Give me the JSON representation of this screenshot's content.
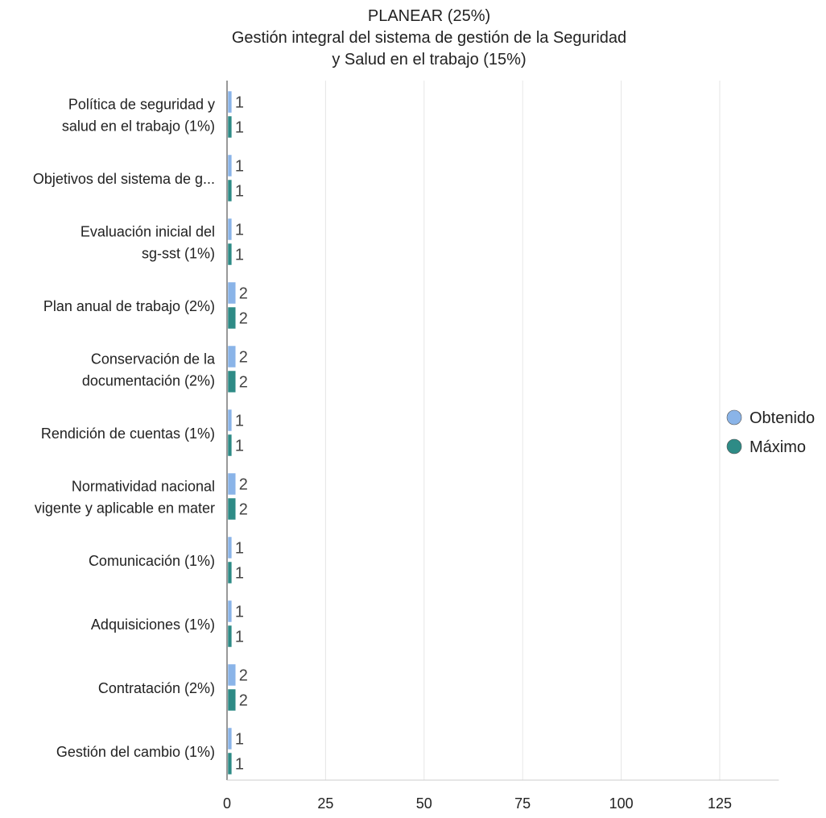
{
  "chart_data": {
    "type": "bar",
    "orientation": "horizontal",
    "title_lines": [
      "PLANEAR (25%)",
      "Gestión integral del sistema de gestión de la Seguridad",
      "y Salud en el trabajo (15%)"
    ],
    "xlim": [
      0,
      140
    ],
    "x_ticks": [
      0,
      25,
      50,
      75,
      100,
      125
    ],
    "grid": true,
    "legend_position": "right",
    "categories": [
      [
        "Política de seguridad y",
        "salud en el trabajo (1%)"
      ],
      [
        "Objetivos del sistema de g..."
      ],
      [
        "Evaluación inicial del",
        "sg-sst (1%)"
      ],
      [
        "Plan anual de trabajo (2%)"
      ],
      [
        "Conservación de la",
        "documentación (2%)"
      ],
      [
        "Rendición de cuentas (1%)"
      ],
      [
        "Normatividad nacional",
        "vigente y aplicable en mater"
      ],
      [
        "Comunicación (1%)"
      ],
      [
        "Adquisiciones (1%)"
      ],
      [
        "Contratación (2%)"
      ],
      [
        "Gestión del cambio (1%)"
      ]
    ],
    "series": [
      {
        "name": "Obtenido",
        "color": "#8ab4e8",
        "values": [
          1,
          1,
          1,
          2,
          2,
          1,
          2,
          1,
          1,
          2,
          1
        ]
      },
      {
        "name": "Máximo",
        "color": "#2e8b86",
        "values": [
          1,
          1,
          1,
          2,
          2,
          1,
          2,
          1,
          1,
          2,
          1
        ]
      }
    ]
  }
}
